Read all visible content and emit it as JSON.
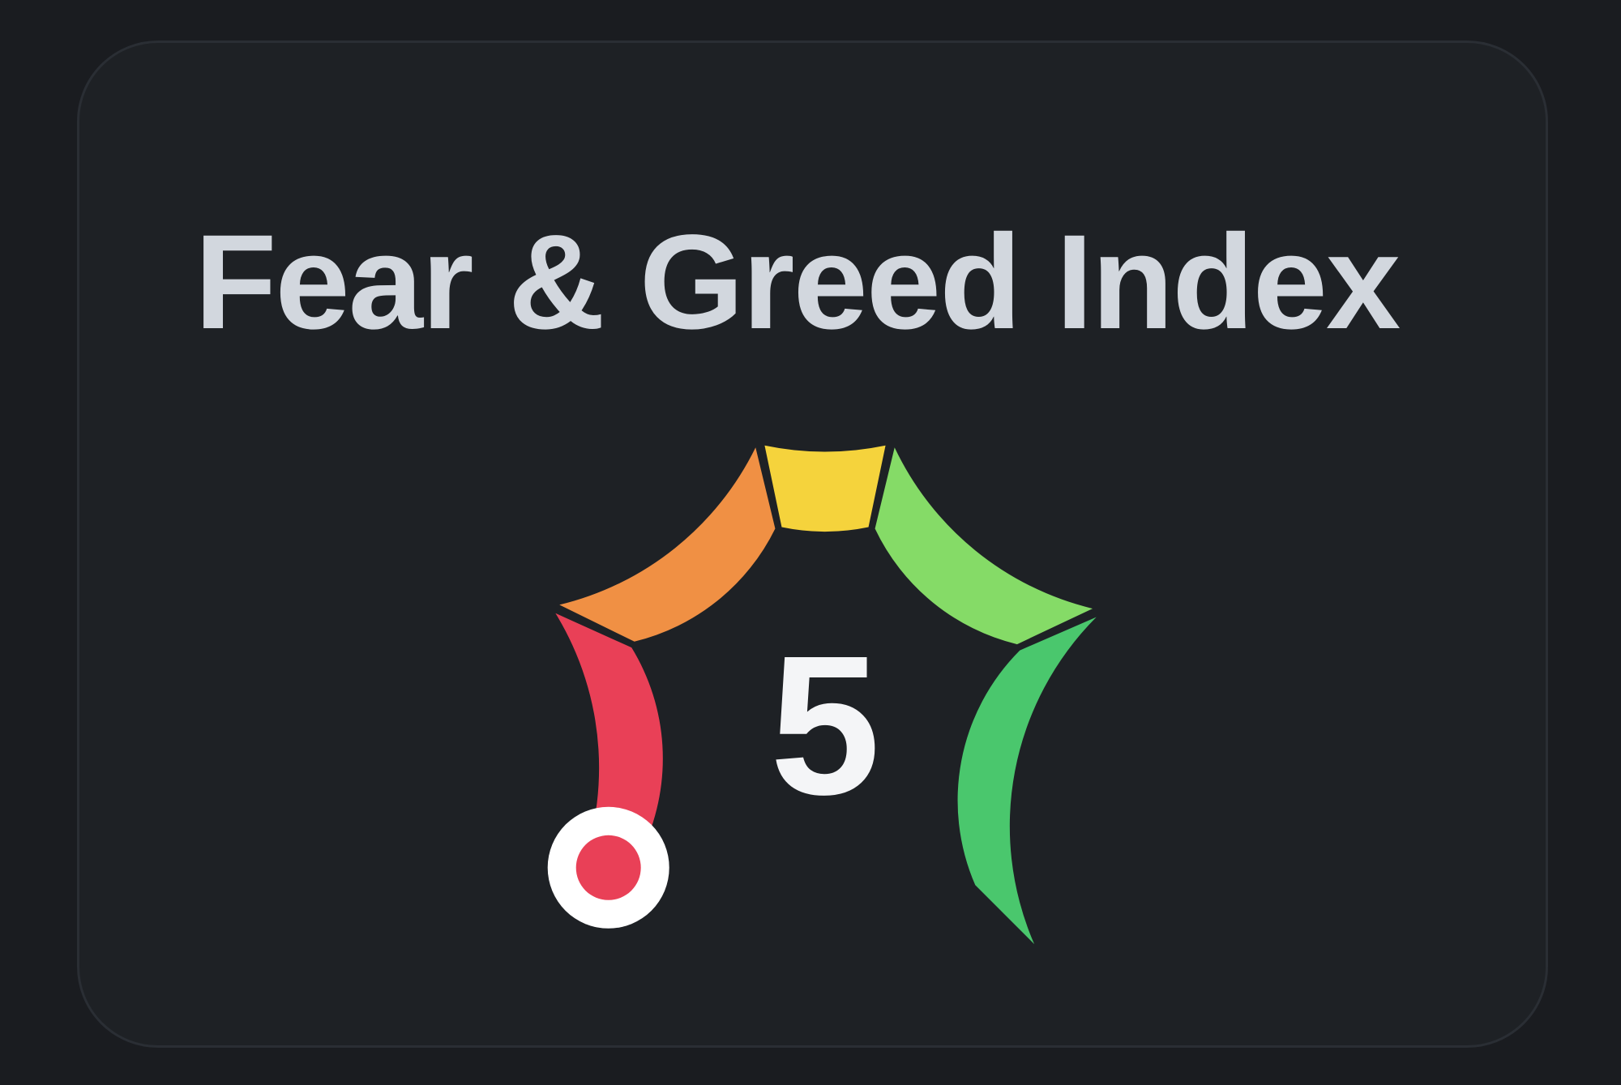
{
  "card": {
    "title": "Fear & Greed Index",
    "value": "5"
  },
  "theme": {
    "page_bg": "#1A1C20",
    "card_bg": "#1E2125",
    "card_border": "#2A2E34",
    "title_color": "#D2D7DE",
    "value_color": "#F4F5F7"
  },
  "chart_data": {
    "type": "gauge",
    "title": "Fear & Greed Index",
    "value": 5,
    "min": 0,
    "max": 100,
    "start_angle_deg": 225,
    "end_angle_deg": -45,
    "arc_start_value": 5,
    "segment_gap_deg": 1.8,
    "segments": [
      {
        "label": "red",
        "from": 0,
        "to": 26,
        "color": "#E94057"
      },
      {
        "label": "orange",
        "from": 26,
        "to": 45.3,
        "color": "#F09044"
      },
      {
        "label": "yellow",
        "from": 45.3,
        "to": 54.7,
        "color": "#F5D33C"
      },
      {
        "label": "light-green",
        "from": 54.7,
        "to": 74.3,
        "color": "#85DB67"
      },
      {
        "label": "green",
        "from": 74.3,
        "to": 100,
        "color": "#4AC76D"
      }
    ],
    "indicator": {
      "value": 5,
      "ring_color": "#FFFFFF",
      "dot_color": "#E94057"
    }
  }
}
